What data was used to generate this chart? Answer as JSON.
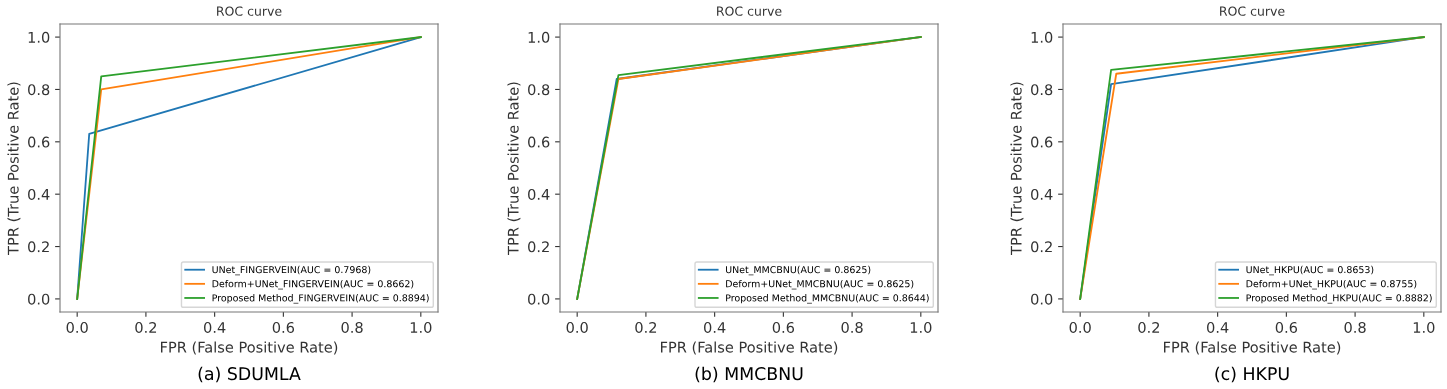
{
  "chart_data": [
    {
      "type": "line",
      "title": "ROC curve",
      "xlabel": "FPR (False Positive Rate)",
      "ylabel": "TPR (True Positive Rate)",
      "annotations": [
        "(a) SDUMLA"
      ],
      "legend": "bottom right",
      "grid": false,
      "xlim": [
        -0.05,
        1.05
      ],
      "ylim": [
        -0.05,
        1.05
      ],
      "xticks": [
        {
          "value": 0,
          "label": "0.0"
        },
        {
          "value": 0.2,
          "label": "0.2"
        },
        {
          "value": 0.4,
          "label": "0.4"
        },
        {
          "value": 0.6,
          "label": "0.6"
        },
        {
          "value": 0.8,
          "label": "0.8"
        },
        {
          "value": 1,
          "label": "1.0"
        }
      ],
      "yticks": [
        {
          "value": 0,
          "label": "0.0"
        },
        {
          "value": 0.2,
          "label": "0.2"
        },
        {
          "value": 0.4,
          "label": "0.4"
        },
        {
          "value": 0.6,
          "label": "0.6"
        },
        {
          "value": 0.8,
          "label": "0.8"
        },
        {
          "value": 1,
          "label": "1.0"
        }
      ],
      "series": [
        {
          "name": "UNet_FINGERVEIN(AUC = 0.7968)",
          "color": "#1f77b4",
          "x": [
            0,
            0.035,
            1
          ],
          "values": [
            0,
            0.63,
            1
          ]
        },
        {
          "name": "Deform+UNet_FINGERVEIN(AUC = 0.8662)",
          "color": "#ff7f0e",
          "x": [
            0,
            0.07,
            1
          ],
          "values": [
            0,
            0.8,
            1
          ]
        },
        {
          "name": "Proposed Method_FINGERVEIN(AUC = 0.8894)",
          "color": "#2ca02c",
          "x": [
            0,
            0.07,
            1
          ],
          "values": [
            0,
            0.85,
            1
          ]
        }
      ]
    },
    {
      "type": "line",
      "title": "ROC curve",
      "xlabel": "FPR (False Positive Rate)",
      "ylabel": "TPR (True Positive Rate)",
      "annotations": [
        "(b) MMCBNU"
      ],
      "legend": "bottom right",
      "grid": false,
      "xlim": [
        -0.05,
        1.05
      ],
      "ylim": [
        -0.05,
        1.05
      ],
      "xticks": [
        {
          "value": 0,
          "label": "0.0"
        },
        {
          "value": 0.2,
          "label": "0.2"
        },
        {
          "value": 0.4,
          "label": "0.4"
        },
        {
          "value": 0.6,
          "label": "0.6"
        },
        {
          "value": 0.8,
          "label": "0.8"
        },
        {
          "value": 1,
          "label": "1.0"
        }
      ],
      "yticks": [
        {
          "value": 0,
          "label": "0.0"
        },
        {
          "value": 0.2,
          "label": "0.2"
        },
        {
          "value": 0.4,
          "label": "0.4"
        },
        {
          "value": 0.6,
          "label": "0.6"
        },
        {
          "value": 0.8,
          "label": "0.8"
        },
        {
          "value": 1,
          "label": "1.0"
        }
      ],
      "series": [
        {
          "name": "UNet_MMCBNU(AUC = 0.8625)",
          "color": "#1f77b4",
          "x": [
            0,
            0.115,
            1
          ],
          "values": [
            0,
            0.84,
            1
          ]
        },
        {
          "name": "Deform+UNet_MMCBNU(AUC = 0.8625)",
          "color": "#ff7f0e",
          "x": [
            0,
            0.12,
            1
          ],
          "values": [
            0,
            0.84,
            1
          ]
        },
        {
          "name": "Proposed Method_MMCBNU(AUC = 0.8644)",
          "color": "#2ca02c",
          "x": [
            0,
            0.12,
            1
          ],
          "values": [
            0,
            0.855,
            1
          ]
        }
      ]
    },
    {
      "type": "line",
      "title": "ROC curve",
      "xlabel": "FPR (False Positive Rate)",
      "ylabel": "TPR (True Positive Rate)",
      "annotations": [
        "(c) HKPU"
      ],
      "legend": "bottom right",
      "grid": false,
      "xlim": [
        -0.05,
        1.05
      ],
      "ylim": [
        -0.05,
        1.05
      ],
      "xticks": [
        {
          "value": 0,
          "label": "0.0"
        },
        {
          "value": 0.2,
          "label": "0.2"
        },
        {
          "value": 0.4,
          "label": "0.4"
        },
        {
          "value": 0.6,
          "label": "0.6"
        },
        {
          "value": 0.8,
          "label": "0.8"
        },
        {
          "value": 1,
          "label": "1.0"
        }
      ],
      "yticks": [
        {
          "value": 0,
          "label": "0.0"
        },
        {
          "value": 0.2,
          "label": "0.2"
        },
        {
          "value": 0.4,
          "label": "0.4"
        },
        {
          "value": 0.6,
          "label": "0.6"
        },
        {
          "value": 0.8,
          "label": "0.8"
        },
        {
          "value": 1,
          "label": "1.0"
        }
      ],
      "series": [
        {
          "name": "UNet_HKPU(AUC = 0.8653)",
          "color": "#1f77b4",
          "x": [
            0,
            0.09,
            1
          ],
          "values": [
            0,
            0.82,
            1
          ]
        },
        {
          "name": "Deform+UNet_HKPU(AUC = 0.8755)",
          "color": "#ff7f0e",
          "x": [
            0,
            0.105,
            1
          ],
          "values": [
            0,
            0.86,
            1
          ]
        },
        {
          "name": "Proposed Method_HKPU(AUC = 0.8882)",
          "color": "#2ca02c",
          "x": [
            0,
            0.09,
            1
          ],
          "values": [
            0,
            0.875,
            1
          ]
        }
      ]
    }
  ]
}
